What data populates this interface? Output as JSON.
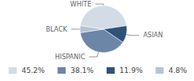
{
  "chart_data": {
    "type": "pie",
    "categories": [
      "WHITE",
      "ASIAN",
      "HISPANIC",
      "BLACK"
    ],
    "values": [
      45.2,
      11.9,
      38.1,
      4.8
    ],
    "value_labels": [
      "45.2%",
      "11.9%",
      "38.1%",
      "4.8%"
    ],
    "colors": [
      "#d3dbe6",
      "#2f5279",
      "#6c86a8",
      "#b7c3d3"
    ],
    "legend": "bottom"
  }
}
